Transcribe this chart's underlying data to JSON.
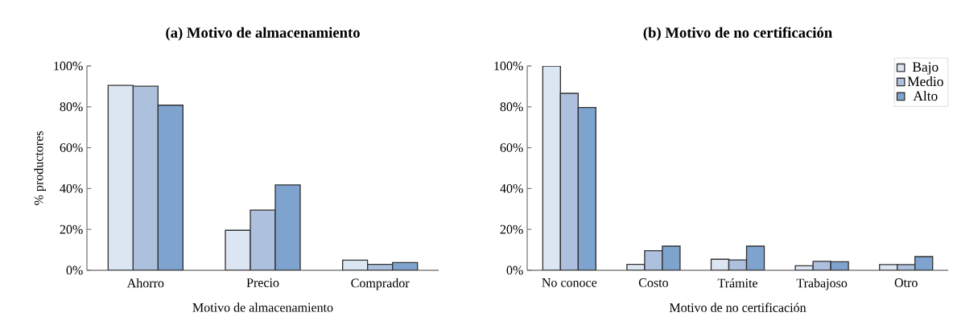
{
  "chart_data": [
    {
      "type": "bar",
      "title": "(a) Motivo de almacenamiento",
      "xlabel": "Motivo de almacenamiento",
      "ylabel": "% productores",
      "categories": [
        "Ahorro",
        "Precio",
        "Comprador"
      ],
      "series": [
        {
          "color": "#dce6f2",
          "values": [
            90.5,
            19.6,
            5.0
          ]
        },
        {
          "color": "#adc0de",
          "values": [
            90.1,
            29.5,
            2.9
          ]
        },
        {
          "color": "#7ea3cf",
          "values": [
            80.8,
            41.8,
            3.8
          ]
        }
      ],
      "ylim": [
        0,
        100
      ],
      "yticks": [
        {
          "value": 0,
          "label": "0%"
        },
        {
          "value": 20,
          "label": "20%"
        },
        {
          "value": 40,
          "label": "40%"
        },
        {
          "value": 60,
          "label": "60%"
        },
        {
          "value": 80,
          "label": "80%"
        },
        {
          "value": 100,
          "label": "100%"
        }
      ],
      "grid": false,
      "legend": false
    },
    {
      "type": "bar",
      "title": "(b) Motivo de no certificación",
      "xlabel": "Motivo de no certificación",
      "categories": [
        "No conoce",
        "Costo",
        "Trámite",
        "Trabajoso",
        "Otro"
      ],
      "series": [
        {
          "name": "Bajo",
          "color": "#dce6f2",
          "values": [
            100,
            2.9,
            5.4,
            2.2,
            2.8
          ]
        },
        {
          "name": "Medio",
          "color": "#adc0de",
          "values": [
            86.6,
            9.6,
            5.1,
            4.4,
            2.8
          ]
        },
        {
          "name": "Alto",
          "color": "#7ea3cf",
          "values": [
            79.7,
            11.8,
            11.8,
            4.2,
            6.7
          ]
        }
      ],
      "ylim": [
        0,
        100
      ],
      "yticks": [
        {
          "value": 0,
          "label": "0%"
        },
        {
          "value": 20,
          "label": "20%"
        },
        {
          "value": 40,
          "label": "40%"
        },
        {
          "value": 60,
          "label": "60%"
        },
        {
          "value": 80,
          "label": "80%"
        },
        {
          "value": 100,
          "label": "100%"
        }
      ],
      "grid": false,
      "legend": "top right"
    }
  ]
}
